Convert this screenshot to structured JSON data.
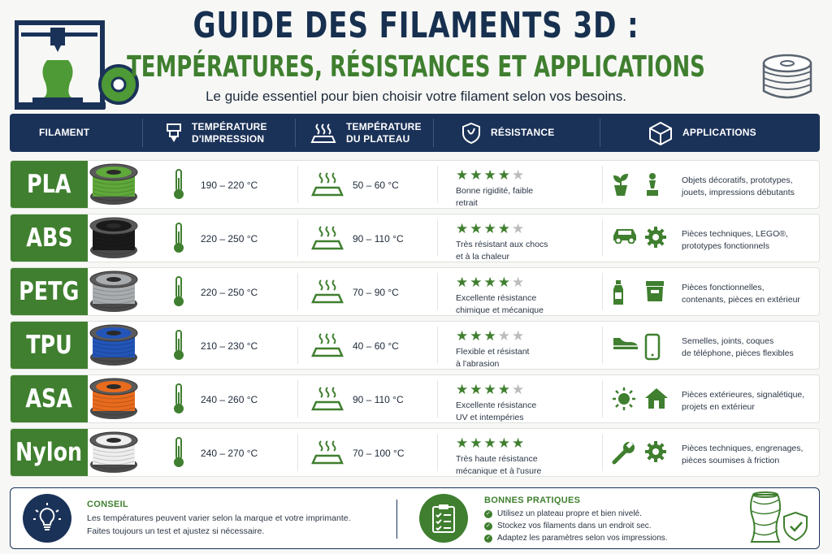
{
  "header": {
    "title": "GUIDE DES FILAMENTS 3D :",
    "subtitle_line": "TEMPÉRATURES, RÉSISTANCES ET APPLICATIONS",
    "tagline": "Le guide essentiel pour bien choisir votre filament selon vos besoins."
  },
  "columns": {
    "filament": "FILAMENT",
    "print_temp_1": "TEMPÉRATURE",
    "print_temp_2": "D'IMPRESSION",
    "bed_temp_1": "TEMPÉRATURE",
    "bed_temp_2": "DU PLATEAU",
    "resistance": "RÉSISTANCE",
    "applications": "APPLICATIONS"
  },
  "colors": {
    "navy": "#1b3258",
    "green": "#3f7f2f",
    "star_off": "#bcbcbc"
  },
  "rows": [
    {
      "name": "PLA",
      "spool_color": "#5fa83a",
      "print_temp": "190 – 220 °C",
      "bed_temp": "50 – 60 °C",
      "stars": 4,
      "stars_max": 5,
      "res_1": "Bonne rigidité, faible",
      "res_2": "retrait",
      "app_icons": [
        "plant-icon",
        "chess-piece-icon"
      ],
      "app_1": "Objets décoratifs, prototypes,",
      "app_2": "jouets, impressions débutants"
    },
    {
      "name": "ABS",
      "spool_color": "#1a1a1a",
      "print_temp": "220 – 250 °C",
      "bed_temp": "90 – 110 °C",
      "stars": 4,
      "stars_max": 5,
      "res_1": "Très résistant aux chocs",
      "res_2": "et à la chaleur",
      "app_icons": [
        "car-icon",
        "gear-icon"
      ],
      "app_1": "Pièces techniques, LEGO®,",
      "app_2": "prototypes fonctionnels"
    },
    {
      "name": "PETG",
      "spool_color": "#a9acae",
      "print_temp": "220 – 250 °C",
      "bed_temp": "70 – 90 °C",
      "stars": 4,
      "stars_max": 5,
      "res_1": "Excellente résistance",
      "res_2": "chimique et mécanique",
      "app_icons": [
        "bottle-icon",
        "container-icon"
      ],
      "app_1": "Pièces fonctionnelles,",
      "app_2": "contenants, pièces en extérieur"
    },
    {
      "name": "TPU",
      "spool_color": "#2355b8",
      "print_temp": "210 – 230 °C",
      "bed_temp": "40 – 60 °C",
      "stars": 3,
      "stars_max": 5,
      "res_1": "Flexible et résistant",
      "res_2": "à l'abrasion",
      "app_icons": [
        "shoe-icon",
        "phone-icon"
      ],
      "app_1": "Semelles, joints, coques",
      "app_2": "de téléphone, pièces flexibles"
    },
    {
      "name": "ASA",
      "spool_color": "#e86b1e",
      "print_temp": "240 – 260 °C",
      "bed_temp": "90 – 110 °C",
      "stars": 4,
      "stars_max": 5,
      "res_1": "Excellente résistance",
      "res_2": "UV et intempéries",
      "app_icons": [
        "sun-icon",
        "house-icon"
      ],
      "app_1": "Pièces extérieures, signalétique,",
      "app_2": "projets en extérieur"
    },
    {
      "name": "Nylon",
      "spool_color": "#eeeeee",
      "print_temp": "240 – 270 °C",
      "bed_temp": "70 – 100 °C",
      "stars": 5,
      "stars_max": 5,
      "res_1": "Très haute résistance",
      "res_2": "mécanique et à l'usure",
      "app_icons": [
        "wrench-icon",
        "gear-icon"
      ],
      "app_1": "Pièces techniques, engrenages,",
      "app_2": "pièces soumises à friction"
    }
  ],
  "footer": {
    "tip_title": "CONSEIL",
    "tip_1": "Les températures peuvent varier selon la marque et votre imprimante.",
    "tip_2": "Faites toujours un test et ajustez si nécessaire.",
    "practices_title": "BONNES PRATIQUES",
    "practices": [
      "Utilisez un plateau propre et bien nivelé.",
      "Stockez vos filaments dans un endroit sec.",
      "Adaptez les paramètres selon vos impressions."
    ]
  }
}
